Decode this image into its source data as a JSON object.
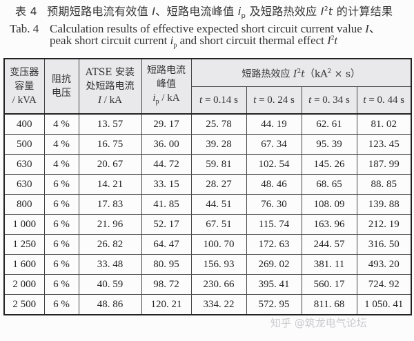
{
  "caption": {
    "cn_label": "表 4",
    "cn_title_parts": [
      "预期短路电流有效值 ",
      "I",
      "、短路电流峰值 ",
      "i",
      "p",
      " 及短路热效应 ",
      "I",
      "2",
      "t",
      " 的计算结果"
    ],
    "en_label": "Tab. 4",
    "en_line1": "Calculation results of effective expected short circuit current value ",
    "en_line1_var": "I",
    "en_line1_end": "、",
    "en_line2_start": "peak short circuit current ",
    "en_line2_var": "i",
    "en_line2_sub": "p",
    "en_line2_mid": " and short circuit thermal effect ",
    "en_line2_var2": "I",
    "en_line2_sup": "2",
    "en_line2_var3": "t"
  },
  "table": {
    "headers": {
      "capacity": [
        "变压器",
        "容量",
        "/ kVA"
      ],
      "impedance": [
        "阻抗",
        "电压"
      ],
      "atse_current": [
        "ATSE 安装",
        "处短路电流",
        "I",
        " / kA"
      ],
      "peak": [
        "短路电流",
        "峰值",
        "i",
        "p",
        " / kA"
      ],
      "thermal_group": {
        "text": "短路热效应 ",
        "var": "I",
        "sup": "2",
        "var2": "t",
        "unit": "（kA",
        "unit_sup": "2",
        "unit_end": " × s）"
      },
      "time_cols": [
        {
          "var": "t",
          "value": " = 0.14 s"
        },
        {
          "var": "t",
          "value": " = 0. 24 s"
        },
        {
          "var": "t",
          "value": " = 0. 34 s"
        },
        {
          "var": "t",
          "value": " = 0. 44 s"
        }
      ]
    },
    "rows": [
      [
        "400",
        "4 %",
        "13. 57",
        "29. 17",
        "25. 78",
        "44. 19",
        "62. 61",
        "81. 02"
      ],
      [
        "500",
        "4 %",
        "16. 75",
        "36. 00",
        "39. 28",
        "67. 34",
        "95. 39",
        "123. 45"
      ],
      [
        "630",
        "4 %",
        "20. 67",
        "44. 72",
        "59. 81",
        "102. 54",
        "145. 26",
        "187. 99"
      ],
      [
        "630",
        "6 %",
        "14. 21",
        "33. 15",
        "28. 27",
        "48. 46",
        "68. 65",
        "88. 85"
      ],
      [
        "800",
        "6 %",
        "17. 83",
        "41. 85",
        "44. 51",
        "76. 30",
        "108. 09",
        "139. 88"
      ],
      [
        "1 000",
        "6 %",
        "21. 96",
        "52. 17",
        "67. 51",
        "115. 74",
        "163. 96",
        "212. 19"
      ],
      [
        "1 250",
        "6 %",
        "26. 82",
        "64. 47",
        "100. 70",
        "172. 63",
        "244. 57",
        "316. 50"
      ],
      [
        "1 600",
        "6 %",
        "33. 48",
        "80. 95",
        "156. 93",
        "269. 02",
        "381. 11",
        "493. 20"
      ],
      [
        "2 000",
        "6 %",
        "40. 59",
        "98. 72",
        "230. 66",
        "395. 41",
        "560. 17",
        "724. 92"
      ],
      [
        "2 500",
        "6 %",
        "48. 86",
        "120. 21",
        "334. 22",
        "572. 95",
        "811. 68",
        "1 050. 41"
      ]
    ]
  },
  "watermark": "知乎 @筑龙电气论坛"
}
